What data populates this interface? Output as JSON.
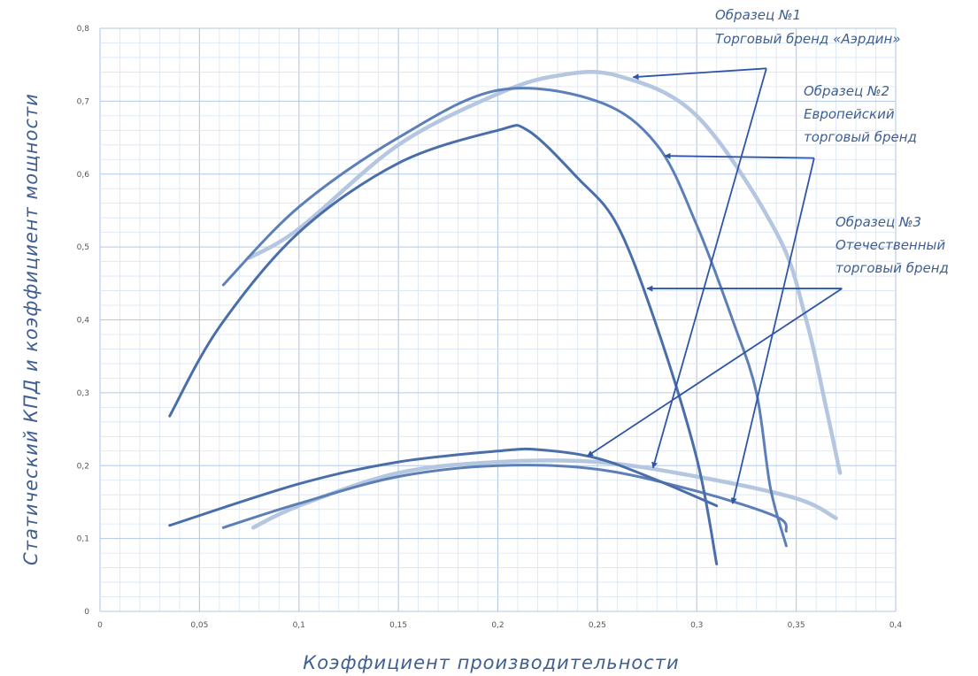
{
  "chart_data": {
    "type": "line",
    "xlabel": "Коэффициент производительности",
    "ylabel": "Статический КПД и коэффициент мощности",
    "xlim": [
      0,
      0.4
    ],
    "ylim": [
      0,
      0.8
    ],
    "xticks": [
      0,
      0.05,
      0.1,
      0.15,
      0.2,
      0.25,
      0.3,
      0.35,
      0.4
    ],
    "xtick_labels": [
      "0",
      "0,05",
      "0,1",
      "0,15",
      "0,2",
      "0,25",
      "0,3",
      "0,35",
      "0,4"
    ],
    "yticks": [
      0,
      0.1,
      0.2,
      0.3,
      0.4,
      0.5,
      0.6,
      0.7,
      0.8
    ],
    "ytick_labels": [
      "0",
      "0,1",
      "0,2",
      "0,3",
      "0,4",
      "0,5",
      "0,6",
      "0,7",
      "0,8"
    ],
    "grid": true,
    "series": [
      {
        "color": "#b4c6e0",
        "efficiency": [
          [
            0.075,
            0.485
          ],
          [
            0.1,
            0.525
          ],
          [
            0.15,
            0.64
          ],
          [
            0.2,
            0.71
          ],
          [
            0.23,
            0.735
          ],
          [
            0.26,
            0.735
          ],
          [
            0.3,
            0.68
          ],
          [
            0.34,
            0.52
          ],
          [
            0.355,
            0.4
          ],
          [
            0.365,
            0.28
          ],
          [
            0.372,
            0.19
          ]
        ],
        "power": [
          [
            0.077,
            0.115
          ],
          [
            0.1,
            0.145
          ],
          [
            0.15,
            0.19
          ],
          [
            0.2,
            0.205
          ],
          [
            0.25,
            0.205
          ],
          [
            0.3,
            0.185
          ],
          [
            0.35,
            0.155
          ],
          [
            0.37,
            0.128
          ]
        ]
      },
      {
        "color": "#5c7fb8",
        "efficiency": [
          [
            0.062,
            0.448
          ],
          [
            0.1,
            0.555
          ],
          [
            0.15,
            0.65
          ],
          [
            0.2,
            0.715
          ],
          [
            0.25,
            0.7
          ],
          [
            0.28,
            0.64
          ],
          [
            0.3,
            0.53
          ],
          [
            0.318,
            0.4
          ],
          [
            0.33,
            0.3
          ],
          [
            0.337,
            0.17
          ],
          [
            0.345,
            0.09
          ]
        ],
        "power": [
          [
            0.062,
            0.115
          ],
          [
            0.1,
            0.148
          ],
          [
            0.15,
            0.185
          ],
          [
            0.2,
            0.2
          ],
          [
            0.25,
            0.195
          ],
          [
            0.3,
            0.165
          ],
          [
            0.34,
            0.13
          ],
          [
            0.345,
            0.11
          ]
        ]
      },
      {
        "color": "#4a6ea9",
        "efficiency": [
          [
            0.035,
            0.268
          ],
          [
            0.06,
            0.39
          ],
          [
            0.1,
            0.52
          ],
          [
            0.15,
            0.615
          ],
          [
            0.2,
            0.66
          ],
          [
            0.215,
            0.66
          ],
          [
            0.24,
            0.595
          ],
          [
            0.26,
            0.53
          ],
          [
            0.28,
            0.39
          ],
          [
            0.3,
            0.21
          ],
          [
            0.31,
            0.065
          ]
        ],
        "power": [
          [
            0.035,
            0.118
          ],
          [
            0.1,
            0.175
          ],
          [
            0.15,
            0.205
          ],
          [
            0.2,
            0.22
          ],
          [
            0.22,
            0.222
          ],
          [
            0.25,
            0.21
          ],
          [
            0.28,
            0.18
          ],
          [
            0.31,
            0.145
          ]
        ]
      }
    ],
    "annotations": [
      {
        "lines": [
          "Образец №1",
          "Торговый бренд «Аэрдин»"
        ]
      },
      {
        "lines": [
          "Образец №2",
          "Европейский",
          "торговый бренд"
        ]
      },
      {
        "lines": [
          "Образец №3",
          "Отечественный",
          "торговый бренд"
        ]
      }
    ]
  }
}
